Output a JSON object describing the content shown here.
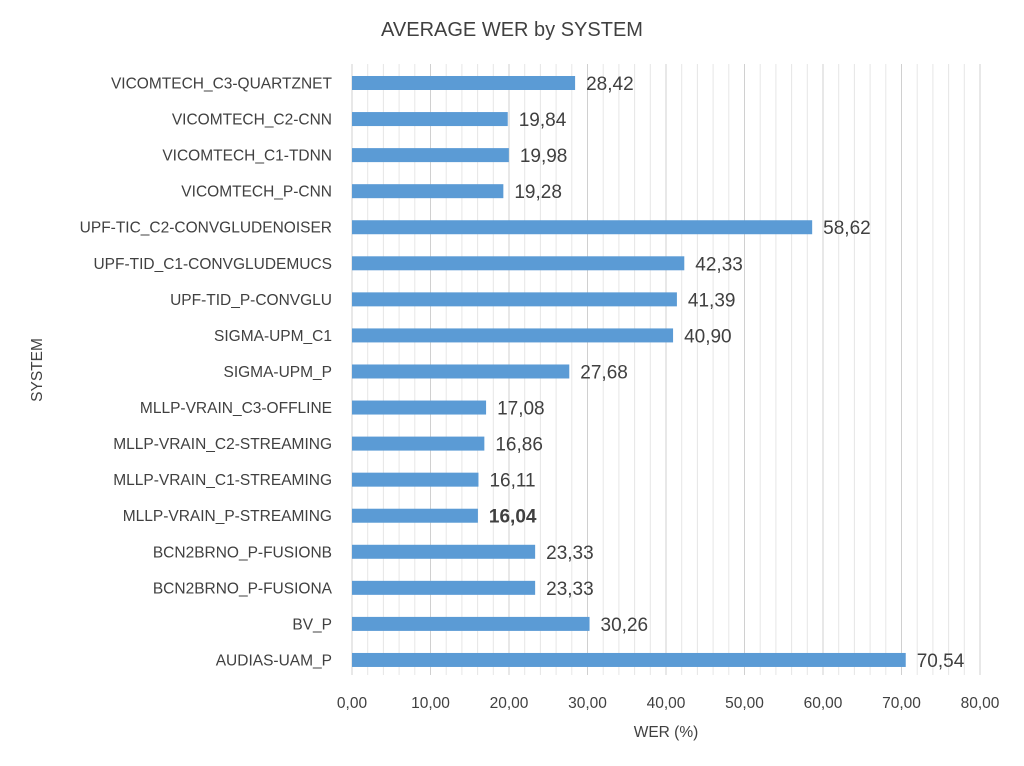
{
  "chart_data": {
    "type": "bar",
    "orientation": "horizontal",
    "title": "AVERAGE WER by  SYSTEM",
    "xlabel": "WER (%)",
    "ylabel": "SYSTEM",
    "xlim": [
      0,
      80
    ],
    "x_ticks": [
      "0,00",
      "10,00",
      "20,00",
      "30,00",
      "40,00",
      "50,00",
      "60,00",
      "70,00",
      "80,00"
    ],
    "grid": "vertical",
    "bar_color": "#5b9bd5",
    "categories": [
      "VICOMTECH_C3-QUARTZNET",
      "VICOMTECH_C2-CNN",
      "VICOMTECH_C1-TDNN",
      "VICOMTECH_P-CNN",
      "UPF-TIC_C2-CONVGLUDENOISER",
      "UPF-TID_C1-CONVGLUDEMUCS",
      "UPF-TID_P-CONVGLU",
      "SIGMA-UPM_C1",
      "SIGMA-UPM_P",
      "MLLP-VRAIN_C3-OFFLINE",
      "MLLP-VRAIN_C2-STREAMING",
      "MLLP-VRAIN_C1-STREAMING",
      "MLLP-VRAIN_P-STREAMING",
      "BCN2BRNO_P-FUSIONB",
      "BCN2BRNO_P-FUSIONA",
      "BV_P",
      "AUDIAS-UAM_P"
    ],
    "values": [
      28.42,
      19.84,
      19.98,
      19.28,
      58.62,
      42.33,
      41.39,
      40.9,
      27.68,
      17.08,
      16.86,
      16.11,
      16.04,
      23.33,
      23.33,
      30.26,
      70.54
    ],
    "data_labels": [
      "28,42",
      "19,84",
      "19,98",
      "19,28",
      "58,62",
      "42,33",
      "41,39",
      "40,90",
      "27,68",
      "17,08",
      "16,86",
      "16,11",
      "16,04",
      "23,33",
      "23,33",
      "30,26",
      "70,54"
    ],
    "highlighted_label": "16,04"
  }
}
